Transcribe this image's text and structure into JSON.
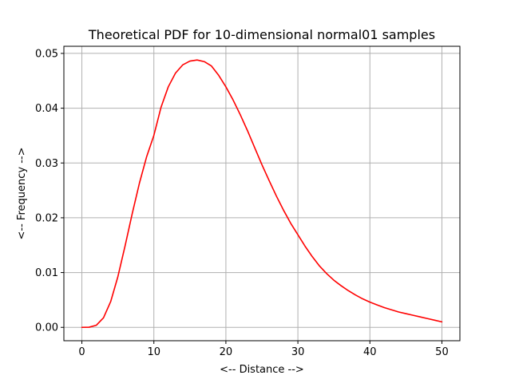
{
  "chart_data": {
    "type": "line",
    "title": "Theoretical PDF for 10-dimensional normal01 samples",
    "xlabel": "<-- Distance -->",
    "ylabel": "<-- Frequency -->",
    "xlim": [
      -2.5,
      52.5
    ],
    "ylim": [
      -0.00244,
      0.0513
    ],
    "xticks": [
      0,
      10,
      20,
      30,
      40,
      50
    ],
    "yticks": [
      0.0,
      0.01,
      0.02,
      0.03,
      0.04,
      0.05
    ],
    "xtick_labels": [
      "0",
      "10",
      "20",
      "30",
      "40",
      "50"
    ],
    "ytick_labels": [
      "0.00",
      "0.01",
      "0.02",
      "0.03",
      "0.04",
      "0.05"
    ],
    "grid": true,
    "line_color": "#ff0000",
    "series": [
      {
        "x": [
          0,
          1,
          2,
          3,
          4,
          5,
          6,
          7,
          8,
          9,
          10,
          11,
          12,
          13,
          14,
          15,
          16,
          17,
          18,
          19,
          20,
          21,
          22,
          23,
          24,
          25,
          26,
          27,
          28,
          29,
          30,
          31,
          32,
          33,
          34,
          35,
          36,
          37,
          38,
          39,
          40,
          41,
          42,
          43,
          44,
          45,
          46,
          47,
          48,
          49,
          50
        ],
        "y": [
          0.0,
          3e-05,
          0.00038,
          0.00174,
          0.0047,
          0.00925,
          0.01487,
          0.0208,
          0.02636,
          0.03117,
          0.03505,
          0.0402,
          0.0439,
          0.0464,
          0.0479,
          0.0486,
          0.0488,
          0.0485,
          0.0477,
          0.046,
          0.0439,
          0.0415,
          0.0388,
          0.0359,
          0.0328,
          0.0297,
          0.0268,
          0.024,
          0.0214,
          0.019,
          0.0169,
          0.0148,
          0.0129,
          0.0112,
          0.0098,
          0.0086,
          0.0076,
          0.0067,
          0.0059,
          0.0052,
          0.0046,
          0.0041,
          0.0036,
          0.0032,
          0.0028,
          0.0025,
          0.0022,
          0.0019,
          0.0016,
          0.0013,
          0.001
        ]
      }
    ]
  }
}
